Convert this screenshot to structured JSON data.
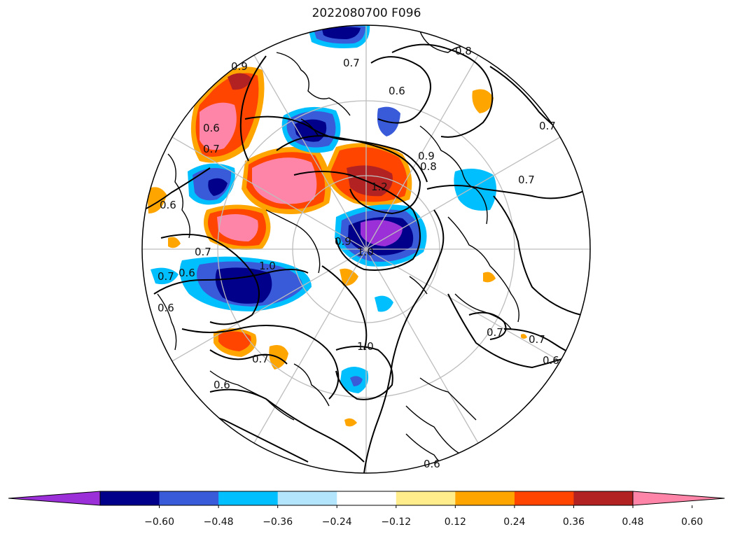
{
  "title": "2022080700 F096",
  "colorbar": {
    "colors": [
      "#9B30D9",
      "#00008B",
      "#3A5BD9",
      "#00BFFF",
      "#B3E5FC",
      "#FFFFFF",
      "#FFEC8B",
      "#FFA500",
      "#FF4500",
      "#B22222",
      "#FF85A8"
    ],
    "ticks": [
      "−0.60",
      "−0.48",
      "−0.36",
      "−0.24",
      "−0.12",
      "0.12",
      "0.24",
      "0.36",
      "0.48",
      "0.60"
    ]
  },
  "contour_labels": [
    "0.8",
    "0.7",
    "0.6",
    "0.7",
    "0.7",
    "0.9",
    "0.6",
    "0.7",
    "0.8",
    "0.9",
    "1.2",
    "1.0",
    "0.9",
    "1.0",
    "0.7",
    "0.6",
    "0.7",
    "0.6",
    "0.7",
    "0.6",
    "0.7",
    "1.0",
    "0.6",
    "0.7",
    "0.6",
    "0.6"
  ]
}
